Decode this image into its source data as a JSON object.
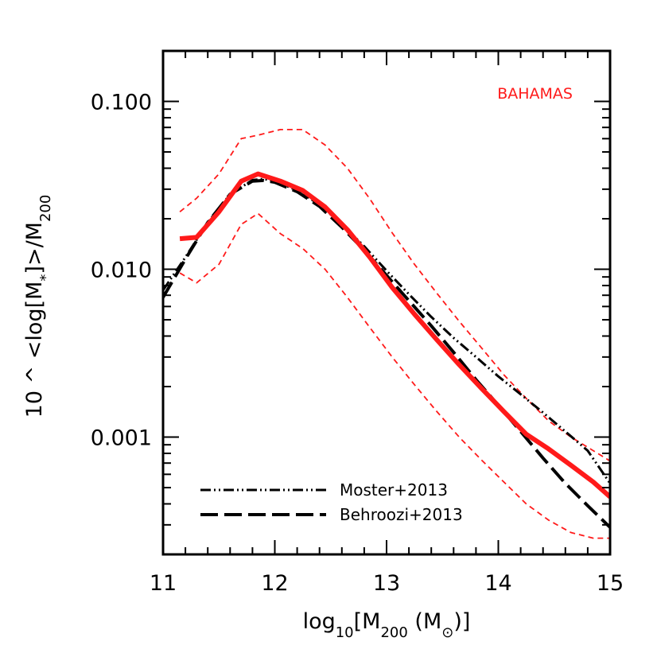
{
  "chart_data": {
    "type": "line",
    "title": "",
    "xlabel": {
      "prefix": "log",
      "sub": "10",
      "open": "[M",
      "sub2": "200",
      "close": " (M",
      "sun": "⊙",
      "end": ")]"
    },
    "ylabel": {
      "text": "10 ^ <log[M",
      "sub1": "*",
      "mid": "]>/M",
      "sub2": "200"
    },
    "x_scale": "linear",
    "y_scale": "log",
    "xlim": [
      11,
      15
    ],
    "ylim": [
      0.0002,
      0.2
    ],
    "x_ticks": [
      11,
      12,
      13,
      14,
      15
    ],
    "x_tick_labels": [
      "11",
      "12",
      "13",
      "14",
      "15"
    ],
    "y_ticks": [
      0.001,
      0.01,
      0.1
    ],
    "y_tick_labels": [
      "0.001",
      "0.010",
      "0.100"
    ],
    "annotation": {
      "text": "BAHAMAS",
      "color": "#ff1a1a"
    },
    "legend_position": "bottom-left",
    "series": [
      {
        "name": "",
        "style": "solid-thick",
        "color": "#ff1a1a",
        "x": [
          11.15,
          11.3,
          11.5,
          11.7,
          11.85,
          12.05,
          12.25,
          12.45,
          12.65,
          12.85,
          13.05,
          13.25,
          13.45,
          13.65,
          13.85,
          14.05,
          14.25,
          14.45,
          14.65,
          14.85,
          15.0
        ],
        "y": [
          0.0152,
          0.0155,
          0.022,
          0.0335,
          0.037,
          0.0335,
          0.0295,
          0.0235,
          0.0172,
          0.0118,
          0.0078,
          0.0054,
          0.0038,
          0.0027,
          0.00195,
          0.00142,
          0.00104,
          0.00085,
          0.00068,
          0.00054,
          0.00044
        ]
      },
      {
        "name": "",
        "style": "dashed-thin-upper",
        "color": "#ff1a1a",
        "x": [
          11.15,
          11.3,
          11.5,
          11.7,
          11.85,
          12.05,
          12.25,
          12.45,
          12.65,
          12.85,
          13.05,
          13.25,
          13.45,
          13.65,
          13.85,
          14.05,
          14.25,
          14.45,
          14.65,
          14.85,
          15.0
        ],
        "y": [
          0.022,
          0.0265,
          0.037,
          0.06,
          0.063,
          0.068,
          0.068,
          0.055,
          0.04,
          0.0263,
          0.0165,
          0.0107,
          0.0072,
          0.0049,
          0.0034,
          0.00235,
          0.0017,
          0.00125,
          0.001,
          0.00083,
          0.00072
        ]
      },
      {
        "name": "",
        "style": "dashed-thin-lower",
        "color": "#ff1a1a",
        "x": [
          11.15,
          11.3,
          11.5,
          11.7,
          11.85,
          12.05,
          12.25,
          12.45,
          12.65,
          12.85,
          13.05,
          13.25,
          13.45,
          13.65,
          13.85,
          14.05,
          14.25,
          14.45,
          14.65,
          14.85,
          15.0
        ],
        "y": [
          0.0095,
          0.0083,
          0.0107,
          0.0185,
          0.0215,
          0.0163,
          0.0133,
          0.01,
          0.0068,
          0.0045,
          0.003,
          0.00205,
          0.00142,
          0.001,
          0.00073,
          0.00054,
          0.0004,
          0.00032,
          0.00027,
          0.00025,
          0.00025
        ]
      },
      {
        "name": "Moster+2013",
        "style": "dashdotdot",
        "color": "#000000",
        "x": [
          11.0,
          11.2,
          11.4,
          11.6,
          11.8,
          11.9,
          12.0,
          12.2,
          12.4,
          12.6,
          12.8,
          13.0,
          13.2,
          13.4,
          13.6,
          13.8,
          14.0,
          14.2,
          14.4,
          14.6,
          14.8,
          15.0
        ],
        "y": [
          0.0075,
          0.0118,
          0.019,
          0.028,
          0.034,
          0.0345,
          0.0335,
          0.0295,
          0.0243,
          0.0185,
          0.0137,
          0.0098,
          0.0071,
          0.0052,
          0.0039,
          0.003,
          0.0023,
          0.0018,
          0.0014,
          0.00108,
          0.00083,
          0.00053
        ]
      },
      {
        "name": "Behroozi+2013",
        "style": "longdash",
        "color": "#000000",
        "x": [
          11.0,
          11.2,
          11.4,
          11.6,
          11.8,
          11.9,
          12.0,
          12.2,
          12.4,
          12.6,
          12.8,
          13.0,
          13.2,
          13.4,
          13.6,
          13.8,
          14.0,
          14.2,
          14.4,
          14.6,
          14.8,
          15.0
        ],
        "y": [
          0.0068,
          0.0115,
          0.019,
          0.028,
          0.0335,
          0.0338,
          0.033,
          0.029,
          0.0237,
          0.0178,
          0.013,
          0.0092,
          0.0065,
          0.0046,
          0.0032,
          0.0022,
          0.00155,
          0.00108,
          0.00075,
          0.00053,
          0.00039,
          0.00029
        ]
      }
    ]
  }
}
